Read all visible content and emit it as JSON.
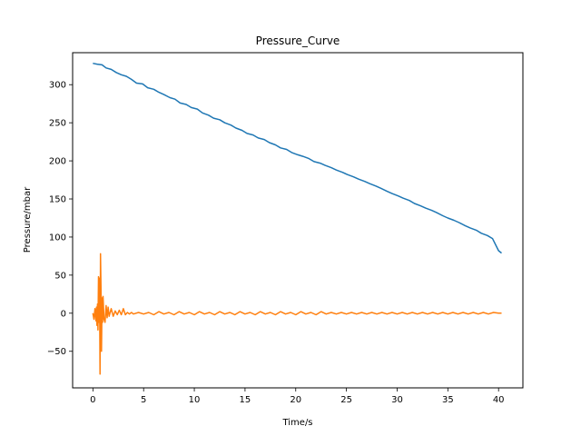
{
  "chart_data": {
    "type": "line",
    "title": "Pressure_Curve",
    "xlabel": "Time/s",
    "ylabel": "Pressure/mbar",
    "xlim": [
      -2.0,
      42.4
    ],
    "ylim": [
      -98,
      342
    ],
    "xticks": [
      0,
      5,
      10,
      15,
      20,
      25,
      30,
      35,
      40
    ],
    "yticks": [
      -50,
      0,
      50,
      100,
      150,
      200,
      250,
      300
    ],
    "grid": false,
    "legend": "none",
    "series": [
      {
        "color": "#1f77b4",
        "x": [
          0.0,
          0.4,
          0.9,
          1.3,
          1.8,
          2.3,
          2.8,
          3.3,
          3.8,
          4.3,
          4.9,
          5.4,
          6.0,
          6.5,
          7.0,
          7.6,
          8.1,
          8.6,
          9.2,
          9.7,
          10.3,
          10.8,
          11.4,
          11.9,
          12.5,
          13.0,
          13.6,
          14.1,
          14.7,
          15.2,
          15.8,
          16.3,
          16.9,
          17.4,
          18.0,
          18.5,
          19.1,
          19.6,
          20.2,
          20.7,
          21.3,
          21.8,
          22.4,
          22.9,
          23.5,
          24.0,
          24.6,
          25.1,
          25.7,
          26.2,
          26.8,
          27.3,
          27.9,
          28.4,
          29.0,
          29.5,
          30.1,
          30.6,
          31.2,
          31.7,
          32.3,
          32.8,
          33.4,
          33.9,
          34.5,
          35.0,
          35.6,
          36.1,
          36.7,
          37.2,
          37.8,
          38.3,
          38.9,
          39.4,
          40.0,
          40.3
        ],
        "y": [
          328,
          327,
          326,
          322,
          320,
          316,
          313,
          311,
          307,
          302,
          301,
          296,
          294,
          290,
          287,
          283,
          281,
          276,
          274,
          270,
          268,
          263,
          260,
          256,
          254,
          250,
          247,
          243,
          240,
          236,
          234,
          230,
          228,
          224,
          221,
          217,
          215,
          211,
          208,
          206,
          203,
          199,
          197,
          194,
          191,
          188,
          185,
          182,
          179,
          176,
          173,
          170,
          167,
          164,
          160,
          157,
          154,
          151,
          148,
          144,
          141,
          138,
          135,
          132,
          128,
          125,
          122,
          119,
          115,
          112,
          109,
          105,
          102,
          98,
          82,
          79
        ]
      },
      {
        "color": "#ff7f0e",
        "x": [
          0.0,
          0.1,
          0.2,
          0.3,
          0.35,
          0.4,
          0.45,
          0.5,
          0.55,
          0.6,
          0.65,
          0.7,
          0.75,
          0.8,
          0.85,
          0.9,
          0.95,
          1.0,
          1.1,
          1.2,
          1.3,
          1.4,
          1.5,
          1.6,
          1.8,
          2.0,
          2.2,
          2.4,
          2.6,
          2.8,
          3.0,
          3.2,
          3.4,
          3.6,
          3.8,
          4.0,
          4.5,
          5.0,
          5.5,
          6.0,
          6.5,
          7.0,
          7.5,
          8.0,
          8.5,
          9.0,
          9.5,
          10.0,
          10.5,
          11.0,
          11.5,
          12.0,
          12.5,
          13.0,
          13.5,
          14.0,
          14.5,
          15.0,
          15.5,
          16.0,
          16.5,
          17.0,
          17.5,
          18.0,
          18.5,
          19.0,
          19.5,
          20.0,
          20.5,
          21.0,
          21.5,
          22.0,
          22.5,
          23.0,
          23.5,
          24.0,
          24.5,
          25.0,
          25.5,
          26.0,
          26.5,
          27.0,
          27.5,
          28.0,
          28.5,
          29.0,
          29.5,
          30.0,
          30.5,
          31.0,
          31.5,
          32.0,
          32.5,
          33.0,
          33.5,
          34.0,
          34.5,
          35.0,
          35.5,
          36.0,
          36.5,
          37.0,
          37.5,
          38.0,
          38.5,
          39.0,
          39.5,
          40.0,
          40.3
        ],
        "y": [
          0,
          -8,
          6,
          -10,
          8,
          -16,
          12,
          -22,
          48,
          -12,
          46,
          -80,
          78,
          30,
          -50,
          20,
          -12,
          22,
          -8,
          -12,
          10,
          -6,
          8,
          -4,
          6,
          -4,
          3,
          -2,
          4,
          -2,
          6,
          -2,
          1,
          -1,
          1,
          -1,
          1,
          -1,
          1,
          -2,
          2,
          -1,
          1,
          -2,
          2,
          -1,
          1,
          -2,
          2,
          -1,
          1,
          -2,
          2,
          -1,
          1,
          -2,
          2,
          -1,
          1,
          -2,
          2,
          -1,
          1,
          -2,
          2,
          -1,
          1,
          -2,
          2,
          -1,
          1,
          -2,
          2,
          -1,
          1,
          -1,
          1,
          -1,
          1,
          -1,
          1,
          -1,
          1,
          -1,
          1,
          -1,
          1,
          -1,
          1,
          -1,
          1,
          -1,
          1,
          -1,
          1,
          -1,
          1,
          -1,
          1,
          -1,
          1,
          -1,
          1,
          -1,
          1,
          -1,
          1,
          0,
          0
        ]
      }
    ]
  }
}
